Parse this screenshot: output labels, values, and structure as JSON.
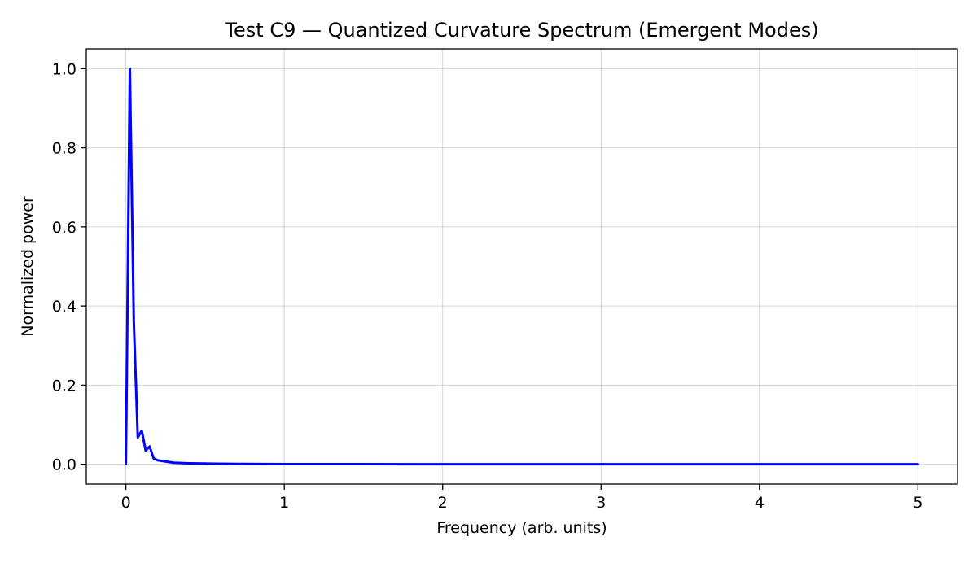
{
  "chart_data": {
    "type": "line",
    "title": "Test C9 — Quantized Curvature Spectrum (Emergent Modes)",
    "xlabel": "Frequency (arb. units)",
    "ylabel": "Normalized power",
    "xlim": [
      -0.25,
      5.25
    ],
    "ylim": [
      -0.05,
      1.05
    ],
    "x_ticks": [
      0,
      1,
      2,
      3,
      4,
      5
    ],
    "x_tick_labels": [
      "0",
      "1",
      "2",
      "3",
      "4",
      "5"
    ],
    "y_ticks": [
      0.0,
      0.2,
      0.4,
      0.6,
      0.8,
      1.0
    ],
    "y_tick_labels": [
      "0.0",
      "0.2",
      "0.4",
      "0.6",
      "0.8",
      "1.0"
    ],
    "grid": true,
    "series": [
      {
        "color": "#0000ff",
        "x": [
          0.0,
          0.025,
          0.05,
          0.075,
          0.1,
          0.125,
          0.15,
          0.175,
          0.2,
          0.25,
          0.3,
          0.4,
          0.5,
          0.7,
          1.0,
          1.5,
          2.0,
          3.0,
          4.0,
          5.0
        ],
        "y": [
          0.0,
          1.0,
          0.36,
          0.068,
          0.085,
          0.035,
          0.045,
          0.015,
          0.01,
          0.007,
          0.004,
          0.0025,
          0.0018,
          0.001,
          0.0005,
          0.0003,
          0.0002,
          0.0001,
          5e-05,
          0.0
        ]
      }
    ]
  }
}
